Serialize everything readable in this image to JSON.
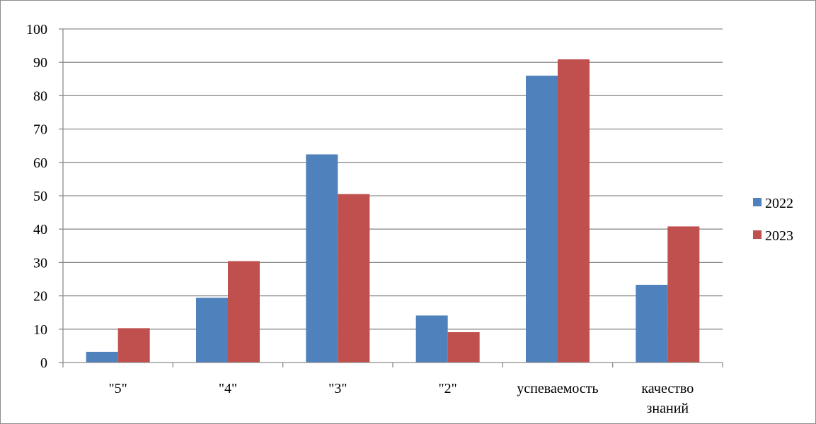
{
  "chart_data": {
    "type": "bar",
    "categories": [
      [
        "\"5\""
      ],
      [
        "\"4\""
      ],
      [
        "\"3\""
      ],
      [
        "\"2\""
      ],
      [
        "успеваемость"
      ],
      [
        "качество",
        "знаний"
      ]
    ],
    "series": [
      {
        "name": "2022",
        "color": "#4f81bd",
        "values": [
          3.2,
          19.4,
          62.4,
          14.1,
          86,
          23.3
        ]
      },
      {
        "name": "2023",
        "color": "#c0504d",
        "values": [
          10.3,
          30.4,
          50.5,
          9.1,
          90.9,
          40.8
        ]
      }
    ],
    "ylim": [
      0,
      100
    ],
    "yticks": [
      0,
      10,
      20,
      30,
      40,
      50,
      60,
      70,
      80,
      90,
      100
    ],
    "grid": true,
    "legend_position": "right",
    "title": "",
    "xlabel": "",
    "ylabel": ""
  }
}
